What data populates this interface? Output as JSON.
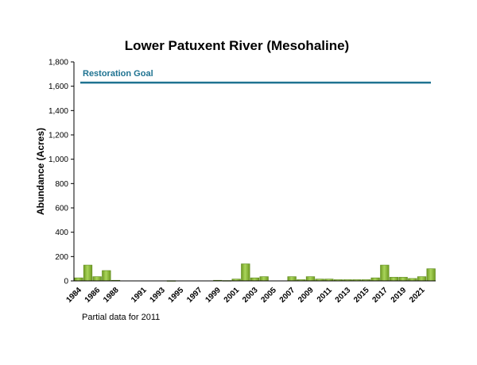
{
  "chart_data": {
    "type": "bar",
    "title": "Lower Patuxent River (Mesohaline)",
    "ylabel": "Abundance (Acres)",
    "xlabel": "",
    "ylim": [
      0,
      1800
    ],
    "yticks": [
      0,
      200,
      400,
      600,
      800,
      1000,
      1200,
      1400,
      1600,
      1800
    ],
    "ytick_labels": [
      "0",
      "200",
      "400",
      "600",
      "800",
      "1,000",
      "1,200",
      "1,400",
      "1,600",
      "1,800"
    ],
    "categories": [
      "1984",
      "1985",
      "1986",
      "1987",
      "1988",
      "1989",
      "1990",
      "1991",
      "1992",
      "1993",
      "1994",
      "1995",
      "1996",
      "1997",
      "1998",
      "1999",
      "2000",
      "2001",
      "2002",
      "2003",
      "2004",
      "2005",
      "2006",
      "2007",
      "2008",
      "2009",
      "2010",
      "2011",
      "2012",
      "2013",
      "2014",
      "2015",
      "2016",
      "2017",
      "2018",
      "2019",
      "2020",
      "2021",
      "2022"
    ],
    "xtick_labels_shown": [
      "1984",
      "1986",
      "1988",
      "1991",
      "1993",
      "1995",
      "1997",
      "1999",
      "2001",
      "2003",
      "2005",
      "2007",
      "2009",
      "2011",
      "2013",
      "2015",
      "2017",
      "2019",
      "2021"
    ],
    "values": [
      25,
      130,
      35,
      85,
      5,
      0,
      0,
      0,
      0,
      0,
      2,
      0,
      0,
      0,
      0,
      5,
      3,
      15,
      140,
      25,
      35,
      0,
      0,
      35,
      10,
      35,
      15,
      15,
      10,
      10,
      10,
      10,
      25,
      130,
      30,
      30,
      20,
      35,
      100
    ],
    "reference_line": {
      "label": "Restoration Goal",
      "value": 1630,
      "color": "#1f7391"
    },
    "bar_color": "#8db83f",
    "grid": false,
    "note": "Partial data for 2011"
  }
}
